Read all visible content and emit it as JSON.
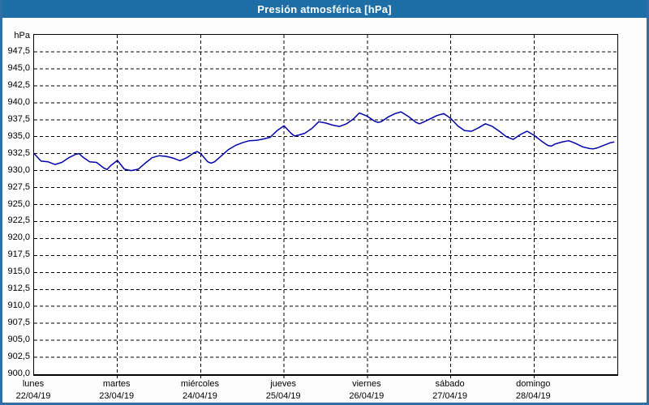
{
  "window": {
    "title": "Presión atmosférica [hPa]"
  },
  "colors": {
    "titlebar": "#1d6ea7",
    "window_border": "#2f6ea7",
    "plot_background": "#ffffff",
    "gridline": "#000000",
    "axis": "#000000",
    "line": "#0000aa",
    "label_text": "#000000",
    "title_text": "#ffffff"
  },
  "chart_data": {
    "type": "line",
    "title": "Presión atmosférica [hPa]",
    "unit_label": "hPa",
    "ylabel": "hPa",
    "ylim": [
      900,
      950
    ],
    "ytick_step": 2.5,
    "yticks": [
      {
        "value": 947.5,
        "label": "947,5"
      },
      {
        "value": 945.0,
        "label": "945,0"
      },
      {
        "value": 942.5,
        "label": "942,5"
      },
      {
        "value": 940.0,
        "label": "940,0"
      },
      {
        "value": 937.5,
        "label": "937,5"
      },
      {
        "value": 935.0,
        "label": "935,0"
      },
      {
        "value": 932.5,
        "label": "932,5"
      },
      {
        "value": 930.0,
        "label": "930,0"
      },
      {
        "value": 927.5,
        "label": "927,5"
      },
      {
        "value": 925.0,
        "label": "925,0"
      },
      {
        "value": 922.5,
        "label": "922,5"
      },
      {
        "value": 920.0,
        "label": "920,0"
      },
      {
        "value": 917.5,
        "label": "917,5"
      },
      {
        "value": 915.0,
        "label": "915,0"
      },
      {
        "value": 912.5,
        "label": "912,5"
      },
      {
        "value": 910.0,
        "label": "910,0"
      },
      {
        "value": 907.5,
        "label": "907,5"
      },
      {
        "value": 905.0,
        "label": "905,0"
      },
      {
        "value": 902.5,
        "label": "902,5"
      },
      {
        "value": 900.0,
        "label": "900,0"
      }
    ],
    "x_span_hours": 168,
    "x_days": [
      {
        "name": "lunes",
        "date": "22/04/19"
      },
      {
        "name": "martes",
        "date": "23/04/19"
      },
      {
        "name": "miércoles",
        "date": "24/04/19"
      },
      {
        "name": "jueves",
        "date": "25/04/19"
      },
      {
        "name": "viernes",
        "date": "26/04/19"
      },
      {
        "name": "sábado",
        "date": "27/04/19"
      },
      {
        "name": "domingo",
        "date": "28/04/19"
      }
    ],
    "grid": "dashed",
    "legend": "none",
    "series": [
      {
        "name": "Presión atmosférica",
        "unit": "hPa",
        "color": "#0000aa",
        "points_hour_hpa": [
          [
            0,
            932.5
          ],
          [
            2,
            931.4
          ],
          [
            4,
            931.3
          ],
          [
            6,
            930.9
          ],
          [
            8,
            931.2
          ],
          [
            10,
            931.9
          ],
          [
            12,
            932.4
          ],
          [
            13,
            932.5
          ],
          [
            14,
            932.0
          ],
          [
            16,
            931.3
          ],
          [
            18,
            931.2
          ],
          [
            20,
            930.4
          ],
          [
            21,
            930.15
          ],
          [
            22,
            930.7
          ],
          [
            24,
            931.5
          ],
          [
            26,
            930.2
          ],
          [
            28,
            930.0
          ],
          [
            30,
            930.2
          ],
          [
            32,
            931.1
          ],
          [
            34,
            931.9
          ],
          [
            36,
            932.2
          ],
          [
            38,
            932.1
          ],
          [
            40,
            931.85
          ],
          [
            42,
            931.45
          ],
          [
            44,
            931.9
          ],
          [
            46,
            932.6
          ],
          [
            47,
            932.8
          ],
          [
            48,
            932.5
          ],
          [
            50,
            931.3
          ],
          [
            51,
            931.1
          ],
          [
            52,
            931.3
          ],
          [
            54,
            932.2
          ],
          [
            56,
            933.1
          ],
          [
            58,
            933.7
          ],
          [
            60,
            934.1
          ],
          [
            62,
            934.4
          ],
          [
            64,
            934.45
          ],
          [
            66,
            934.65
          ],
          [
            68,
            934.9
          ],
          [
            70,
            935.9
          ],
          [
            72,
            936.6
          ],
          [
            74,
            935.5
          ],
          [
            75,
            935.1
          ],
          [
            76,
            935.2
          ],
          [
            78,
            935.5
          ],
          [
            80,
            936.2
          ],
          [
            82,
            937.2
          ],
          [
            84,
            937.0
          ],
          [
            86,
            936.7
          ],
          [
            88,
            936.5
          ],
          [
            90,
            936.9
          ],
          [
            92,
            937.6
          ],
          [
            93.7,
            938.5
          ],
          [
            96,
            938.0
          ],
          [
            98,
            937.3
          ],
          [
            99,
            937.1
          ],
          [
            100,
            937.2
          ],
          [
            102,
            937.9
          ],
          [
            104,
            938.4
          ],
          [
            105.7,
            938.65
          ],
          [
            108,
            937.9
          ],
          [
            110,
            937.1
          ],
          [
            111,
            936.9
          ],
          [
            112,
            937.1
          ],
          [
            114,
            937.6
          ],
          [
            116,
            938.1
          ],
          [
            118,
            938.4
          ],
          [
            120,
            937.7
          ],
          [
            122,
            936.6
          ],
          [
            124,
            935.9
          ],
          [
            126,
            935.8
          ],
          [
            128,
            936.3
          ],
          [
            130,
            936.9
          ],
          [
            132,
            936.5
          ],
          [
            134,
            935.8
          ],
          [
            136,
            935.0
          ],
          [
            138,
            934.6
          ],
          [
            140,
            935.3
          ],
          [
            142,
            935.8
          ],
          [
            144,
            935.2
          ],
          [
            146,
            934.4
          ],
          [
            148,
            933.7
          ],
          [
            149,
            933.6
          ],
          [
            150,
            933.9
          ],
          [
            152,
            934.2
          ],
          [
            154,
            934.4
          ],
          [
            156,
            934.0
          ],
          [
            158,
            933.5
          ],
          [
            160,
            933.25
          ],
          [
            161,
            933.2
          ],
          [
            162,
            933.3
          ],
          [
            164,
            933.7
          ],
          [
            166,
            934.1
          ],
          [
            167,
            934.2
          ]
        ]
      }
    ]
  }
}
